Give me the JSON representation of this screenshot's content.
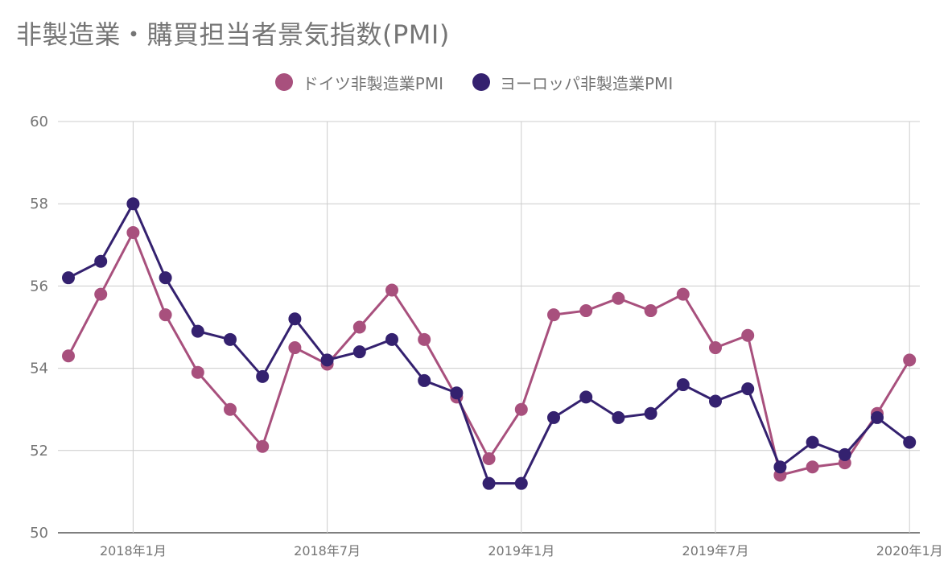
{
  "colors": {
    "germany": "#A8507D",
    "europe": "#34216F",
    "grid": "#CCCCCC",
    "text": "#757575"
  },
  "chart_data": {
    "type": "line",
    "title": "非製造業・購買担当者景気指数(PMI)",
    "legend_position": "top",
    "grid": true,
    "ylim": [
      50,
      60
    ],
    "yticks": [
      "50",
      "52",
      "54",
      "56",
      "58",
      "60"
    ],
    "x_start": "2017-11",
    "x": [
      "2017-11",
      "2017-12",
      "2018-01",
      "2018-02",
      "2018-03",
      "2018-04",
      "2018-05",
      "2018-06",
      "2018-07",
      "2018-08",
      "2018-09",
      "2018-10",
      "2018-11",
      "2018-12",
      "2019-01",
      "2019-02",
      "2019-03",
      "2019-04",
      "2019-05",
      "2019-06",
      "2019-07",
      "2019-08",
      "2019-09",
      "2019-10",
      "2019-11",
      "2019-12",
      "2020-01"
    ],
    "xtick_labels": [
      {
        "at": "2018-01",
        "label": "2018年1月"
      },
      {
        "at": "2018-07",
        "label": "2018年7月"
      },
      {
        "at": "2019-01",
        "label": "2019年1月"
      },
      {
        "at": "2019-07",
        "label": "2019年7月"
      },
      {
        "at": "2020-01",
        "label": "2020年1月"
      }
    ],
    "series": [
      {
        "name": "ドイツ非製造業PMI",
        "color_key": "germany",
        "values": [
          54.3,
          55.8,
          57.3,
          55.3,
          53.9,
          53.0,
          52.1,
          54.5,
          54.1,
          55.0,
          55.9,
          54.7,
          53.3,
          51.8,
          53.0,
          55.3,
          55.4,
          55.7,
          55.4,
          55.8,
          54.5,
          54.8,
          51.4,
          51.6,
          51.7,
          52.9,
          54.2
        ]
      },
      {
        "name": "ヨーロッパ非製造業PMI",
        "color_key": "europe",
        "values": [
          56.2,
          56.6,
          58.0,
          56.2,
          54.9,
          54.7,
          53.8,
          55.2,
          54.2,
          54.4,
          54.7,
          53.7,
          53.4,
          51.2,
          51.2,
          52.8,
          53.3,
          52.8,
          52.9,
          53.6,
          53.2,
          53.5,
          51.6,
          52.2,
          51.9,
          52.8,
          52.2
        ]
      }
    ]
  }
}
